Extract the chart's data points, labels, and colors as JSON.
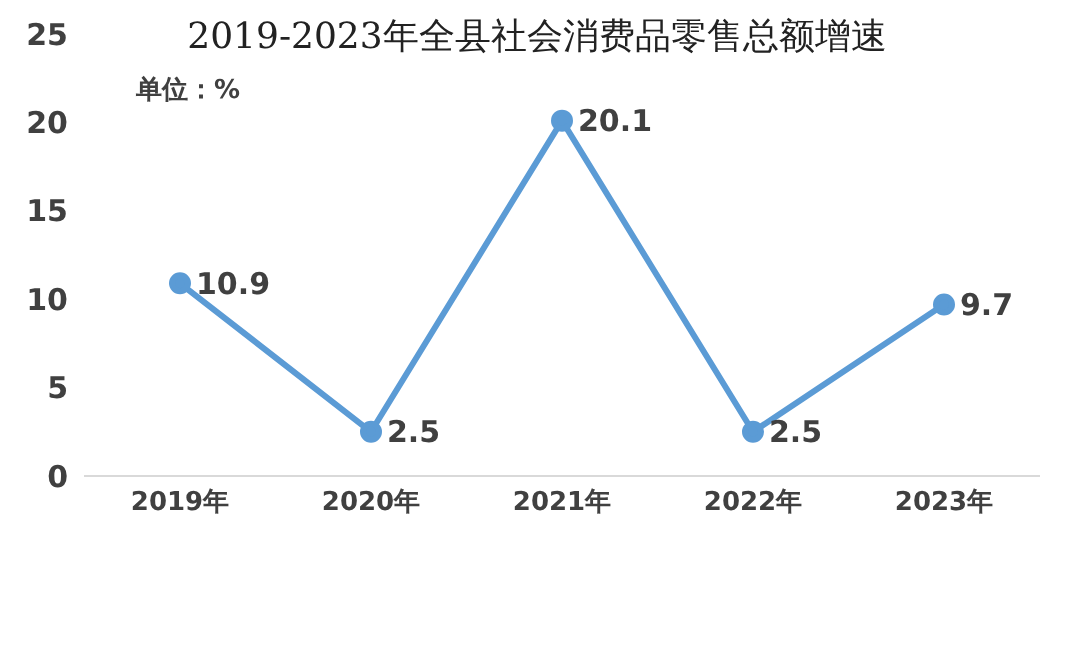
{
  "chart_data": {
    "type": "line",
    "title": "2019-2023年全县社会消费品零售总额增速",
    "annotations": [
      "单位：%"
    ],
    "categories": [
      "2019年",
      "2020年",
      "2021年",
      "2022年",
      "2023年"
    ],
    "series": [
      {
        "color": "#5b9bd5",
        "values": [
          10.9,
          2.5,
          20.1,
          2.5,
          9.7
        ]
      }
    ],
    "ylim": [
      0,
      25
    ],
    "yticks": [
      0,
      5,
      10,
      15,
      20,
      25
    ],
    "marker": "circle",
    "line_style": "solid",
    "data_labels": true
  }
}
